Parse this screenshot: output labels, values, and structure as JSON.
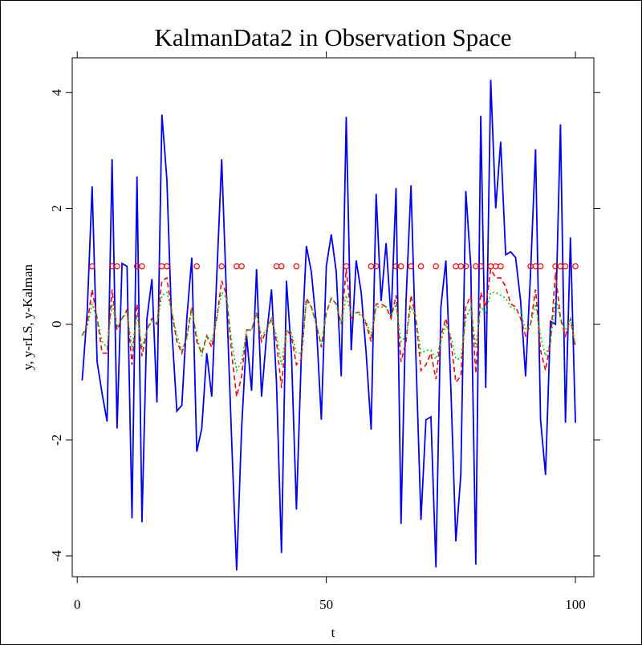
{
  "chart_data": {
    "type": "line",
    "title": "KalmanData2 in Observation Space",
    "xlabel": "t",
    "ylabel": "y, y-rLS, y-Kalman",
    "xlim": [
      -1,
      103.7
    ],
    "ylim": [
      -4.36,
      4.6
    ],
    "xticks": [
      0,
      50,
      100
    ],
    "yticks": [
      -4,
      -2,
      0,
      2,
      4
    ],
    "x": [
      1,
      2,
      3,
      4,
      5,
      6,
      7,
      8,
      9,
      10,
      11,
      12,
      13,
      14,
      15,
      16,
      17,
      18,
      19,
      20,
      21,
      22,
      23,
      24,
      25,
      26,
      27,
      28,
      29,
      30,
      31,
      32,
      33,
      34,
      35,
      36,
      37,
      38,
      39,
      40,
      41,
      42,
      43,
      44,
      45,
      46,
      47,
      48,
      49,
      50,
      51,
      52,
      53,
      54,
      55,
      56,
      57,
      58,
      59,
      60,
      61,
      62,
      63,
      64,
      65,
      66,
      67,
      68,
      69,
      70,
      71,
      72,
      73,
      74,
      75,
      76,
      77,
      78,
      79,
      80,
      81,
      82,
      83,
      84,
      85,
      86,
      87,
      88,
      89,
      90,
      91,
      92,
      93,
      94,
      95,
      96,
      97,
      98,
      99,
      100
    ],
    "series": [
      {
        "color": "#0000ee",
        "dash": "solid",
        "values": [
          -0.97,
          0.2,
          2.38,
          -0.65,
          -1.2,
          -1.68,
          2.85,
          -1.8,
          1.05,
          1.0,
          -3.35,
          2.55,
          -3.42,
          0.1,
          0.78,
          -1.35,
          3.62,
          2.5,
          -0.1,
          -1.5,
          -1.4,
          0.1,
          1.15,
          -2.2,
          -1.8,
          -0.5,
          -1.25,
          0.8,
          2.85,
          0.4,
          -2.0,
          -4.25,
          -1.8,
          -0.2,
          -1.15,
          0.95,
          -1.25,
          -0.2,
          0.6,
          -1.0,
          -3.95,
          0.75,
          -0.5,
          -3.2,
          -0.5,
          1.35,
          0.9,
          0.0,
          -1.65,
          1.0,
          1.55,
          0.9,
          -0.9,
          3.58,
          -0.45,
          1.1,
          0.55,
          -0.5,
          -1.82,
          2.25,
          0.4,
          1.4,
          0.1,
          2.35,
          -3.45,
          0.4,
          2.4,
          -0.6,
          -3.38,
          -1.65,
          -1.6,
          -4.2,
          0.3,
          1.1,
          -1.1,
          -3.75,
          -2.6,
          2.3,
          1.0,
          -4.15,
          3.6,
          -1.1,
          4.22,
          2.0,
          3.15,
          1.2,
          1.25,
          1.15,
          0.4,
          -0.9,
          0.9,
          3.02,
          -1.65,
          -2.6,
          0.05,
          0.0,
          3.45,
          -1.7,
          1.5,
          -1.7
        ]
      },
      {
        "color": "#ff0000",
        "dash": "dashed",
        "values": [
          -0.2,
          0.0,
          0.6,
          0.1,
          -0.5,
          -0.5,
          0.6,
          -0.1,
          0.1,
          0.25,
          -0.7,
          0.35,
          -0.55,
          -0.1,
          0.1,
          0.0,
          0.75,
          0.8,
          0.2,
          -0.3,
          -0.5,
          -0.2,
          0.3,
          -0.3,
          -0.5,
          -0.2,
          -0.4,
          0.1,
          0.75,
          0.5,
          -0.5,
          -1.25,
          -0.9,
          -0.1,
          -0.1,
          0.2,
          -0.3,
          -0.1,
          0.1,
          -0.3,
          -1.1,
          -0.1,
          -0.2,
          -0.7,
          -0.6,
          0.45,
          0.3,
          0.0,
          -0.4,
          0.2,
          0.45,
          0.35,
          0.0,
          0.95,
          0.1,
          0.2,
          0.2,
          0.0,
          -0.3,
          0.35,
          0.35,
          0.3,
          0.1,
          0.5,
          -0.65,
          -0.3,
          0.5,
          0.1,
          -0.8,
          -0.7,
          -0.5,
          -0.95,
          -0.2,
          0.1,
          -0.3,
          -1.0,
          -0.9,
          0.3,
          0.5,
          -0.85,
          0.55,
          0.3,
          0.95,
          0.8,
          0.8,
          0.65,
          0.35,
          0.3,
          0.1,
          -0.2,
          0.0,
          0.6,
          -0.45,
          -0.8,
          -0.3,
          0.9,
          0.1,
          -0.2,
          0.1,
          -0.4
        ]
      },
      {
        "color": "#00cc00",
        "dash": "dotted",
        "values": [
          -0.2,
          -0.05,
          0.35,
          0.1,
          -0.3,
          -0.4,
          0.35,
          -0.05,
          0.1,
          0.2,
          -0.4,
          0.15,
          -0.4,
          -0.1,
          0.05,
          0.0,
          0.5,
          0.55,
          0.2,
          -0.2,
          -0.45,
          -0.25,
          0.25,
          -0.2,
          -0.55,
          -0.2,
          -0.3,
          0.1,
          0.55,
          0.45,
          -0.3,
          -0.8,
          -0.65,
          -0.1,
          -0.1,
          0.2,
          -0.2,
          -0.1,
          0.1,
          -0.2,
          -0.7,
          -0.1,
          -0.15,
          -0.5,
          -0.5,
          0.4,
          0.3,
          0.0,
          -0.35,
          0.2,
          0.45,
          0.35,
          0.0,
          0.5,
          0.15,
          0.2,
          0.15,
          0.05,
          -0.2,
          0.3,
          0.3,
          0.3,
          0.15,
          0.35,
          -0.3,
          -0.2,
          0.3,
          0.1,
          -0.5,
          -0.45,
          -0.45,
          -0.6,
          -0.3,
          0.0,
          -0.2,
          -0.6,
          -0.6,
          0.1,
          0.3,
          -0.4,
          0.3,
          0.2,
          0.55,
          0.55,
          0.5,
          0.45,
          0.3,
          0.25,
          0.2,
          -0.1,
          0.0,
          0.35,
          -0.2,
          -0.55,
          -0.3,
          0.45,
          0.1,
          -0.1,
          0.1,
          -0.35
        ]
      },
      {
        "type": "scatter",
        "color": "#ff0000",
        "x": [
          3,
          7,
          8,
          12,
          13,
          17,
          18,
          24,
          29,
          32,
          33,
          40,
          41,
          44,
          54,
          59,
          60,
          64,
          65,
          67,
          69,
          72,
          76,
          77,
          78,
          80,
          81,
          83,
          84,
          85,
          91,
          92,
          93,
          96,
          97,
          98,
          100
        ],
        "values": [
          1,
          1,
          1,
          1,
          1,
          1,
          1,
          1,
          1,
          1,
          1,
          1,
          1,
          1,
          1,
          1,
          1,
          1,
          1,
          1,
          1,
          1,
          1,
          1,
          1,
          1,
          1,
          1,
          1,
          1,
          1,
          1,
          1,
          1,
          1,
          1,
          1
        ]
      }
    ]
  }
}
